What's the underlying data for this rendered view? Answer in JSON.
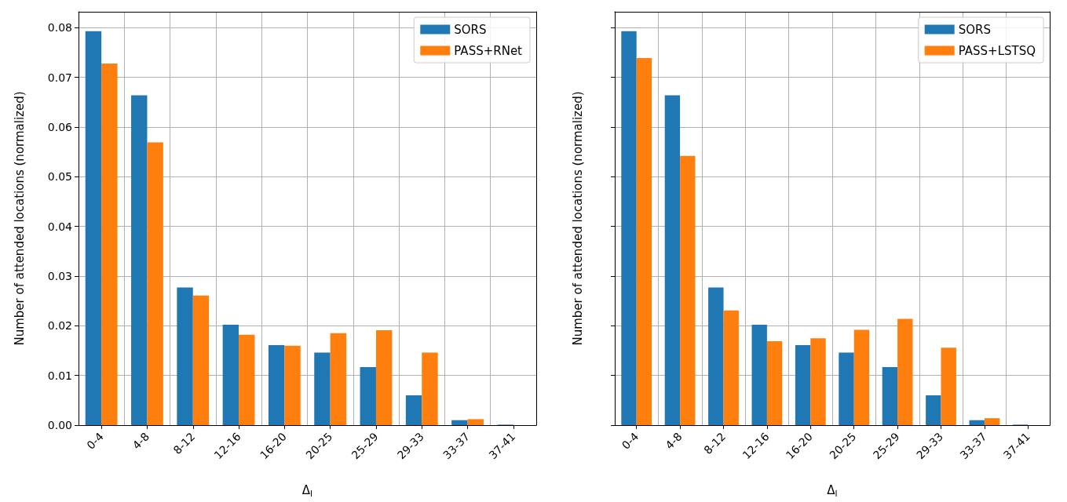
{
  "chart_data": [
    {
      "type": "bar",
      "xlabel": "Δ$_{l}$",
      "ylabel": "Number of attended locations (normalized)",
      "categories": [
        "0-4",
        "4-8",
        "8-12",
        "12-16",
        "16-20",
        "20-25",
        "25-29",
        "29-33",
        "33-37",
        "37-41"
      ],
      "series": [
        {
          "name": "SORS",
          "color": "#1f77b4",
          "values": [
            0.0793,
            0.0664,
            0.0277,
            0.0202,
            0.0161,
            0.0146,
            0.0117,
            0.006,
            0.001,
            0.0001
          ]
        },
        {
          "name": "PASS+RNet",
          "color": "#ff7f0e",
          "values": [
            0.0728,
            0.0569,
            0.0261,
            0.0182,
            0.016,
            0.0185,
            0.0191,
            0.0146,
            0.0012,
            0
          ]
        }
      ],
      "ylim": [
        0,
        0.0832
      ],
      "yticks": [
        {
          "value": 0,
          "label": "0.00"
        },
        {
          "value": 0.01,
          "label": "0.01"
        },
        {
          "value": 0.02,
          "label": "0.02"
        },
        {
          "value": 0.03,
          "label": "0.03"
        },
        {
          "value": 0.04,
          "label": "0.04"
        },
        {
          "value": 0.05,
          "label": "0.05"
        },
        {
          "value": 0.06,
          "label": "0.06"
        },
        {
          "value": 0.07,
          "label": "0.07"
        },
        {
          "value": 0.08,
          "label": "0.08"
        }
      ],
      "grid": true,
      "legend": "top right"
    },
    {
      "type": "bar",
      "xlabel": "Δ$_{l}$",
      "ylabel": "Number of attended locations (normalized)",
      "categories": [
        "0-4",
        "4-8",
        "8-12",
        "12-16",
        "16-20",
        "20-25",
        "25-29",
        "29-33",
        "33-37",
        "37-41"
      ],
      "series": [
        {
          "name": "SORS",
          "color": "#1f77b4",
          "values": [
            0.0793,
            0.0664,
            0.0277,
            0.0202,
            0.0161,
            0.0146,
            0.0117,
            0.006,
            0.001,
            0.0001
          ]
        },
        {
          "name": "PASS+LSTSQ",
          "color": "#ff7f0e",
          "values": [
            0.0739,
            0.0542,
            0.0231,
            0.0169,
            0.0175,
            0.0192,
            0.0214,
            0.0156,
            0.0014,
            0
          ]
        }
      ],
      "ylim": [
        0,
        0.0832
      ],
      "yticks": [
        {
          "value": 0,
          "label": null
        },
        {
          "value": 0.01,
          "label": null
        },
        {
          "value": 0.02,
          "label": null
        },
        {
          "value": 0.03,
          "label": null
        },
        {
          "value": 0.04,
          "label": null
        },
        {
          "value": 0.05,
          "label": null
        },
        {
          "value": 0.06,
          "label": null
        },
        {
          "value": 0.07,
          "label": null
        },
        {
          "value": 0.08,
          "label": null
        }
      ],
      "grid": true,
      "legend": "top right",
      "tick_labels": "x"
    }
  ]
}
